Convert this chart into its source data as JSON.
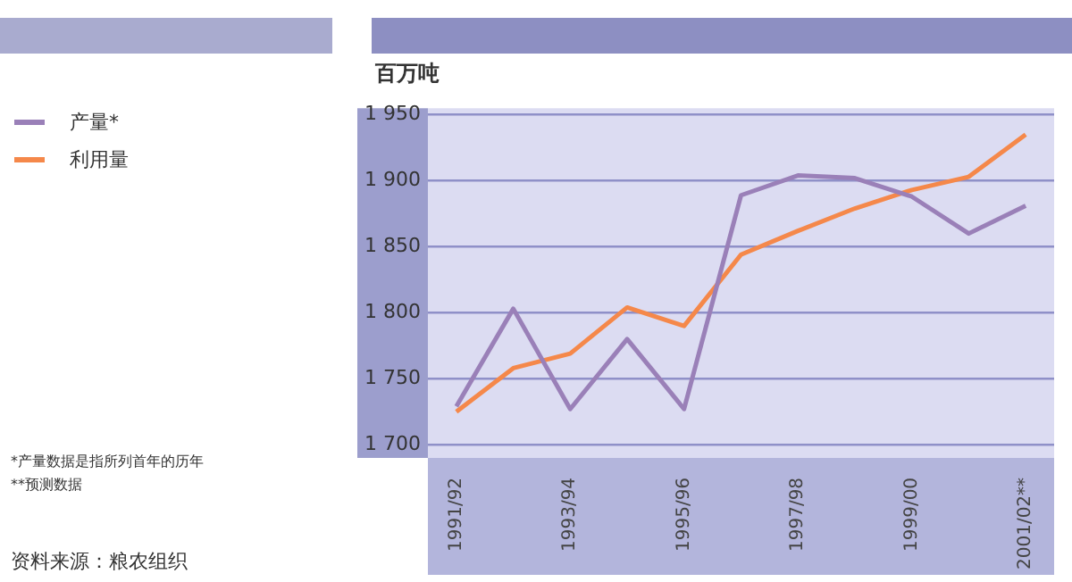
{
  "chart_data": {
    "type": "line",
    "ylabel": "百万吨",
    "categories": [
      "1991/92",
      null,
      "1993/94",
      null,
      "1995/96",
      null,
      "1997/98",
      null,
      "1999/00",
      null,
      "2001/02**"
    ],
    "series": [
      {
        "name": "产量*",
        "color": "#9a80b8",
        "values": [
          1729,
          1803,
          1727,
          1780,
          1727,
          1889,
          1904,
          1902,
          1888,
          1860,
          1881
        ]
      },
      {
        "name": "利用量",
        "color": "#f5884a",
        "values": [
          1725,
          1758,
          1769,
          1804,
          1790,
          1844,
          1862,
          1879,
          1893,
          1903,
          1935
        ]
      }
    ],
    "ylim": [
      1690,
      1955
    ],
    "yticks": [
      {
        "value": 1700,
        "label": "1 700"
      },
      {
        "value": 1750,
        "label": "1 750"
      },
      {
        "value": 1800,
        "label": "1 800"
      },
      {
        "value": 1850,
        "label": "1 850"
      },
      {
        "value": 1900,
        "label": "1 900"
      },
      {
        "value": 1950,
        "label": "1 950"
      }
    ],
    "grid": "y",
    "legend": "left",
    "marker": "none",
    "line_style": "solid",
    "annotations": [
      "*产量数据是指所列首年的历年",
      "**预测数据",
      "资料来源：粮农组织"
    ]
  }
}
